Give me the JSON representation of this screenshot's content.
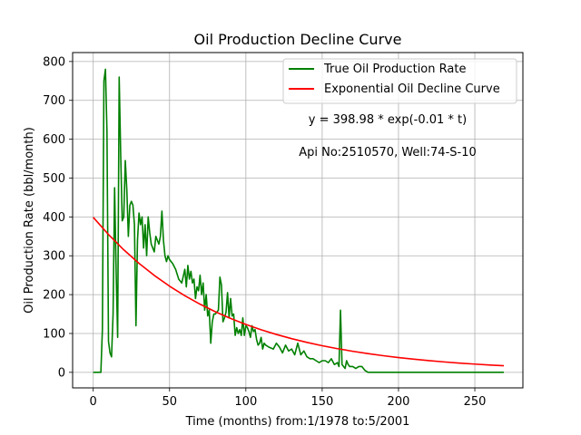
{
  "chart_data": {
    "type": "line",
    "title": "Oil Production Decline Curve",
    "xlabel": "Time (months) from:1/1978 to:5/2001",
    "ylabel": "Oil Production Rate (bbl/month)",
    "xlim": [
      -13.5,
      281.5
    ],
    "ylim": [
      -40,
      823
    ],
    "x_ticks": [
      0,
      50,
      100,
      150,
      200,
      250
    ],
    "y_ticks": [
      0,
      100,
      200,
      300,
      400,
      500,
      600,
      700,
      800
    ],
    "grid": true,
    "legend_position": "upper right",
    "annotations": [
      "y = 398.98 * exp(-0.01 * t)",
      "Api No:2510570, Well:74-S-10"
    ],
    "series": [
      {
        "name": "True Oil Production Rate",
        "color": "#008000",
        "x": [
          0,
          2,
          5,
          6,
          7,
          8,
          9,
          10,
          11,
          12,
          13,
          14,
          15,
          16,
          17,
          18,
          19,
          20,
          21,
          22,
          23,
          24,
          25,
          26,
          27,
          28,
          29,
          30,
          31,
          32,
          33,
          34,
          35,
          36,
          37,
          38,
          39,
          40,
          41,
          42,
          43,
          44,
          45,
          46,
          47,
          48,
          49,
          50,
          52,
          54,
          56,
          58,
          60,
          61,
          62,
          63,
          64,
          65,
          66,
          67,
          68,
          69,
          70,
          71,
          72,
          73,
          74,
          75,
          76,
          77,
          78,
          79,
          80,
          81,
          82,
          83,
          84,
          85,
          86,
          87,
          88,
          89,
          90,
          91,
          92,
          93,
          94,
          95,
          96,
          97,
          98,
          99,
          100,
          101,
          102,
          103,
          104,
          105,
          106,
          107,
          108,
          109,
          110,
          111,
          112,
          113,
          115,
          118,
          120,
          122,
          124,
          126,
          128,
          130,
          132,
          134,
          136,
          138,
          140,
          142,
          144,
          146,
          148,
          150,
          152,
          154,
          156,
          158,
          160,
          161,
          162,
          163,
          164,
          165,
          166,
          167,
          168,
          170,
          172,
          174,
          176,
          178,
          180,
          182,
          184,
          186,
          188,
          200,
          220,
          240,
          260,
          269
        ],
        "values": [
          0,
          0,
          0,
          110,
          750,
          780,
          620,
          80,
          50,
          40,
          150,
          475,
          260,
          90,
          760,
          560,
          390,
          400,
          545,
          470,
          350,
          430,
          440,
          430,
          380,
          120,
          340,
          410,
          380,
          400,
          320,
          380,
          300,
          400,
          360,
          330,
          320,
          310,
          350,
          340,
          330,
          350,
          415,
          340,
          300,
          285,
          300,
          290,
          280,
          265,
          240,
          230,
          265,
          220,
          275,
          240,
          260,
          230,
          240,
          190,
          220,
          210,
          250,
          200,
          230,
          160,
          200,
          145,
          160,
          75,
          130,
          150,
          150,
          155,
          160,
          245,
          225,
          130,
          140,
          155,
          205,
          140,
          190,
          145,
          150,
          95,
          115,
          100,
          110,
          95,
          140,
          95,
          120,
          115,
          105,
          90,
          120,
          105,
          110,
          85,
          70,
          75,
          90,
          60,
          75,
          70,
          65,
          60,
          75,
          65,
          50,
          70,
          55,
          60,
          45,
          75,
          45,
          55,
          40,
          35,
          35,
          30,
          25,
          30,
          30,
          25,
          35,
          20,
          25,
          15,
          160,
          20,
          15,
          10,
          30,
          20,
          15,
          15,
          10,
          15,
          15,
          5,
          0,
          0,
          0,
          0,
          0,
          0,
          0,
          0,
          0,
          0
        ]
      },
      {
        "name": "Exponential Oil Decline Curve",
        "color": "#ff0000",
        "function": "y = 398.98 * exp(-0.01174 * t)",
        "x": [
          0,
          10,
          20,
          30,
          40,
          50,
          60,
          70,
          80,
          90,
          100,
          110,
          120,
          130,
          140,
          150,
          160,
          170,
          180,
          190,
          200,
          210,
          220,
          230,
          240,
          250,
          260,
          269
        ],
        "values": [
          398.98,
          354.7,
          315.4,
          280.5,
          249.4,
          221.8,
          197.2,
          175.4,
          155.9,
          138.7,
          123.3,
          109.6,
          97.5,
          86.7,
          77.1,
          68.5,
          60.9,
          54.2,
          48.2,
          42.8,
          38.1,
          33.9,
          30.1,
          26.8,
          23.8,
          21.2,
          18.8,
          16.9
        ]
      }
    ]
  }
}
